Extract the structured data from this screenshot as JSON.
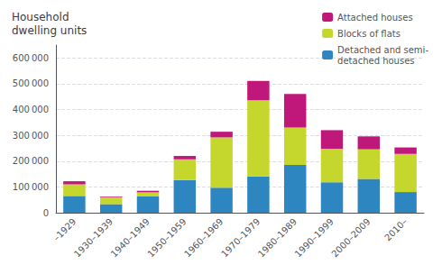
{
  "chart_data": {
    "type": "bar",
    "title": "Household\ndwelling units",
    "categories": [
      "–1929",
      "1930–1939",
      "1940–1949",
      "1950–1959",
      "1960–1969",
      "1970–1979",
      "1980–1989",
      "1990–1999",
      "2000–2009",
      "2010–"
    ],
    "series": [
      {
        "name": "Detached and semi-\ndetached houses",
        "color": "#2e86c1",
        "values": [
          65000,
          33000,
          63000,
          127000,
          97000,
          141000,
          185000,
          118000,
          131000,
          80000
        ]
      },
      {
        "name": "Blocks of flats",
        "color": "#c5d62c",
        "values": [
          45000,
          27000,
          16000,
          80000,
          195000,
          295000,
          145000,
          130000,
          115000,
          148000
        ]
      },
      {
        "name": "Attached houses",
        "color": "#c0187a",
        "values": [
          12000,
          3000,
          6000,
          13000,
          22000,
          75000,
          130000,
          72000,
          50000,
          25000
        ]
      }
    ],
    "stacked": true,
    "ylim": [
      0,
      650000
    ],
    "yticks": [
      0,
      {
        "value": 100000,
        "label": "100 000"
      },
      {
        "value": 200000,
        "label": "200 000"
      },
      {
        "value": 300000,
        "label": "300 000"
      },
      {
        "value": 400000,
        "label": "400 000"
      },
      {
        "value": 500000,
        "label": "500 000"
      },
      {
        "value": 600000,
        "label": "600 000"
      }
    ],
    "grid": true,
    "legend": "upper right"
  }
}
